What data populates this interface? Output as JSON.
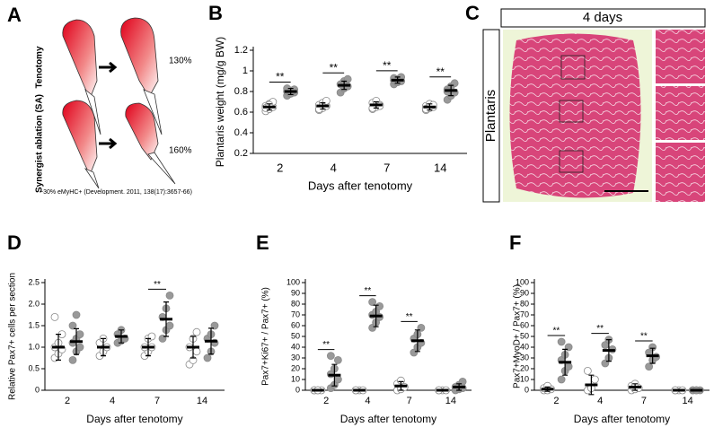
{
  "panel_labels": {
    "A": "A",
    "B": "B",
    "C": "C",
    "D": "D",
    "E": "E",
    "F": "F"
  },
  "panel_a": {
    "rows": [
      {
        "label": "Tenotomy",
        "percent": "130%"
      },
      {
        "label": "Synergist ablation (SA)",
        "percent": "160%"
      }
    ],
    "note": "~30% eMyHC+ (Development. 2011, 138(17):3657-66)"
  },
  "panel_c": {
    "header": "4 days",
    "row_label": "Plantaris"
  },
  "chart_data": [
    {
      "type": "dot",
      "ylabel": "Plantaris weight (mg/g BW)",
      "xlabel": "Days after tenotomy",
      "categories": [
        "2",
        "4",
        "7",
        "14"
      ],
      "ylim": [
        0.2,
        1.2
      ],
      "yticks": [
        0.2,
        0.4,
        0.6,
        0.8,
        1,
        1.2
      ],
      "series": [
        {
          "color": "#ffffff",
          "values": [
            0.65,
            0.66,
            0.67,
            0.65
          ],
          "errors": [
            0.03,
            0.03,
            0.03,
            0.03
          ],
          "points": [
            [
              0.61,
              0.63,
              0.65,
              0.66,
              0.68,
              0.7,
              0.64,
              0.67
            ],
            [
              0.62,
              0.64,
              0.66,
              0.67,
              0.69,
              0.71,
              0.63
            ],
            [
              0.63,
              0.65,
              0.67,
              0.69,
              0.71,
              0.66,
              0.64
            ],
            [
              0.62,
              0.64,
              0.65,
              0.66,
              0.68,
              0.67,
              0.63
            ]
          ]
        },
        {
          "color": "#999999",
          "values": [
            0.8,
            0.86,
            0.91,
            0.81
          ],
          "errors": [
            0.03,
            0.04,
            0.03,
            0.05
          ],
          "points": [
            [
              0.76,
              0.78,
              0.79,
              0.8,
              0.81,
              0.82,
              0.83,
              0.78
            ],
            [
              0.79,
              0.83,
              0.85,
              0.87,
              0.9,
              0.92
            ],
            [
              0.87,
              0.89,
              0.9,
              0.91,
              0.92,
              0.94,
              0.93
            ],
            [
              0.72,
              0.76,
              0.79,
              0.82,
              0.85,
              0.88,
              0.8
            ]
          ]
        }
      ],
      "sig_labels": [
        "**",
        "**",
        "**",
        "**"
      ]
    },
    {
      "type": "dot",
      "ylabel": "Relative Pax7+ cells per section",
      "xlabel": "Days after tenotomy",
      "categories": [
        "2",
        "4",
        "7",
        "14"
      ],
      "ylim": [
        0,
        2.5
      ],
      "yticks": [
        0,
        0.5,
        {
          "value": 1,
          "label": "1.0"
        },
        1.5,
        {
          "value": 2,
          "label": "2.0"
        },
        2.5
      ],
      "series": [
        {
          "color": "#ffffff",
          "values": [
            1.0,
            1.0,
            1.0,
            1.0
          ],
          "errors": [
            0.3,
            0.2,
            0.2,
            0.25
          ],
          "points": [
            [
              0.75,
              0.85,
              0.95,
              1.0,
              1.1,
              1.3,
              1.7
            ],
            [
              0.8,
              0.9,
              1.0,
              1.1,
              1.2
            ],
            [
              0.8,
              0.9,
              1.0,
              1.0,
              1.2,
              1.25
            ],
            [
              0.6,
              0.7,
              0.9,
              1.0,
              1.2,
              1.35
            ]
          ]
        },
        {
          "color": "#999999",
          "values": [
            1.13,
            1.25,
            1.65,
            1.14
          ],
          "errors": [
            0.3,
            0.15,
            0.4,
            0.3
          ],
          "points": [
            [
              0.7,
              0.9,
              1.0,
              1.1,
              1.2,
              1.3,
              1.5,
              1.75
            ],
            [
              1.1,
              1.15,
              1.2,
              1.3,
              1.4
            ],
            [
              1.2,
              1.4,
              1.5,
              1.7,
              1.9,
              2.2
            ],
            [
              0.75,
              0.9,
              1.1,
              1.2,
              1.3,
              1.5
            ]
          ]
        }
      ],
      "sig_labels": [
        null,
        null,
        "**",
        null
      ]
    },
    {
      "type": "dot",
      "ylabel": "Pax7+Ki67+ / Pax7+ (%)",
      "xlabel": "Days after tenotomy",
      "categories": [
        "2",
        "4",
        "7",
        "14"
      ],
      "ylim": [
        0,
        100
      ],
      "yticks": [
        0,
        10,
        20,
        30,
        40,
        50,
        60,
        70,
        80,
        90,
        100
      ],
      "series": [
        {
          "color": "#ffffff",
          "values": [
            0,
            0,
            4,
            0
          ],
          "errors": [
            0,
            0,
            4,
            0
          ],
          "points": [
            [
              0,
              0,
              0,
              0,
              0
            ],
            [
              0,
              0,
              0,
              0
            ],
            [
              0,
              1,
              3,
              6,
              9
            ],
            [
              0,
              0,
              0,
              0
            ]
          ]
        },
        {
          "color": "#999999",
          "values": [
            14,
            69,
            46,
            3
          ],
          "errors": [
            10,
            10,
            10,
            3
          ],
          "points": [
            [
              2,
              5,
              10,
              15,
              20,
              28,
              32
            ],
            [
              58,
              63,
              68,
              70,
              73,
              78,
              82
            ],
            [
              35,
              40,
              44,
              48,
              52,
              58
            ],
            [
              0,
              1,
              2,
              3,
              5,
              8
            ]
          ]
        }
      ],
      "sig_labels": [
        "**",
        "**",
        "**",
        null
      ]
    },
    {
      "type": "dot",
      "ylabel": "Pax7+MyoD+ / Pax7+ (%)",
      "xlabel": "Days after tenotomy",
      "categories": [
        "2",
        "4",
        "7",
        "14"
      ],
      "ylim": [
        0,
        100
      ],
      "yticks": [
        0,
        10,
        20,
        30,
        40,
        50,
        60,
        70,
        80,
        90,
        100
      ],
      "series": [
        {
          "color": "#ffffff",
          "values": [
            1,
            5,
            3,
            0
          ],
          "errors": [
            2,
            9,
            3,
            0
          ],
          "points": [
            [
              0,
              0,
              1,
              2,
              4
            ],
            [
              0,
              2,
              10,
              18
            ],
            [
              0,
              1,
              2,
              4,
              6
            ],
            [
              0,
              0,
              0,
              0
            ]
          ]
        },
        {
          "color": "#999999",
          "values": [
            26,
            37,
            32,
            0
          ],
          "errors": [
            12,
            10,
            7,
            0
          ],
          "points": [
            [
              10,
              18,
              22,
              28,
              33,
              40,
              45
            ],
            [
              25,
              30,
              38,
              42,
              47
            ],
            [
              22,
              28,
              31,
              35,
              40
            ],
            [
              0,
              0,
              0,
              0,
              0
            ]
          ]
        }
      ],
      "sig_labels": [
        "**",
        "**",
        "**",
        null
      ]
    }
  ]
}
